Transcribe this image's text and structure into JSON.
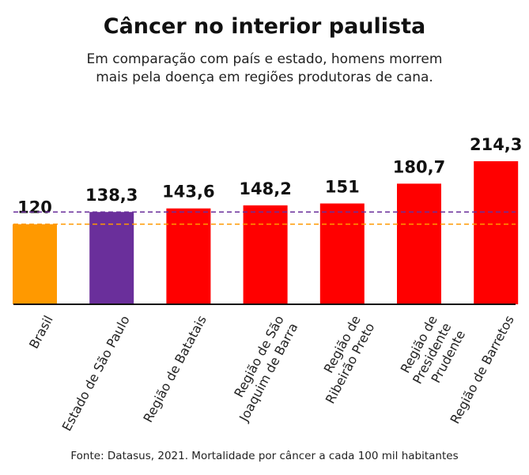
{
  "chart_data": {
    "type": "bar",
    "title": "Câncer no interior paulista",
    "subtitle": "Em comparação com país e estado, homens morrem\nmais pela doença em regiões produtoras de cana.",
    "source": "Fonte: Datasus, 2021. Mortalidade por câncer a cada 100 mil habitantes",
    "categories": [
      "Brasil",
      "Estado de São Paulo",
      "Região de Batatais",
      "Região de São\nJoaquim de Barra",
      "Região de\nRibeirão Preto",
      "Região de\nPresidente\nPrudente",
      "Região de Barretos"
    ],
    "values": [
      120,
      138.3,
      143.6,
      148.2,
      151,
      180.7,
      214.3
    ],
    "value_labels": [
      "120",
      "138,3",
      "143,6",
      "148,2",
      "151",
      "180,7",
      "214,3"
    ],
    "colors": [
      "#ff9900",
      "#6a2f9b",
      "#ff0000",
      "#ff0000",
      "#ff0000",
      "#ff0000",
      "#ff0000"
    ],
    "reference_lines": [
      0,
      1
    ]
  }
}
